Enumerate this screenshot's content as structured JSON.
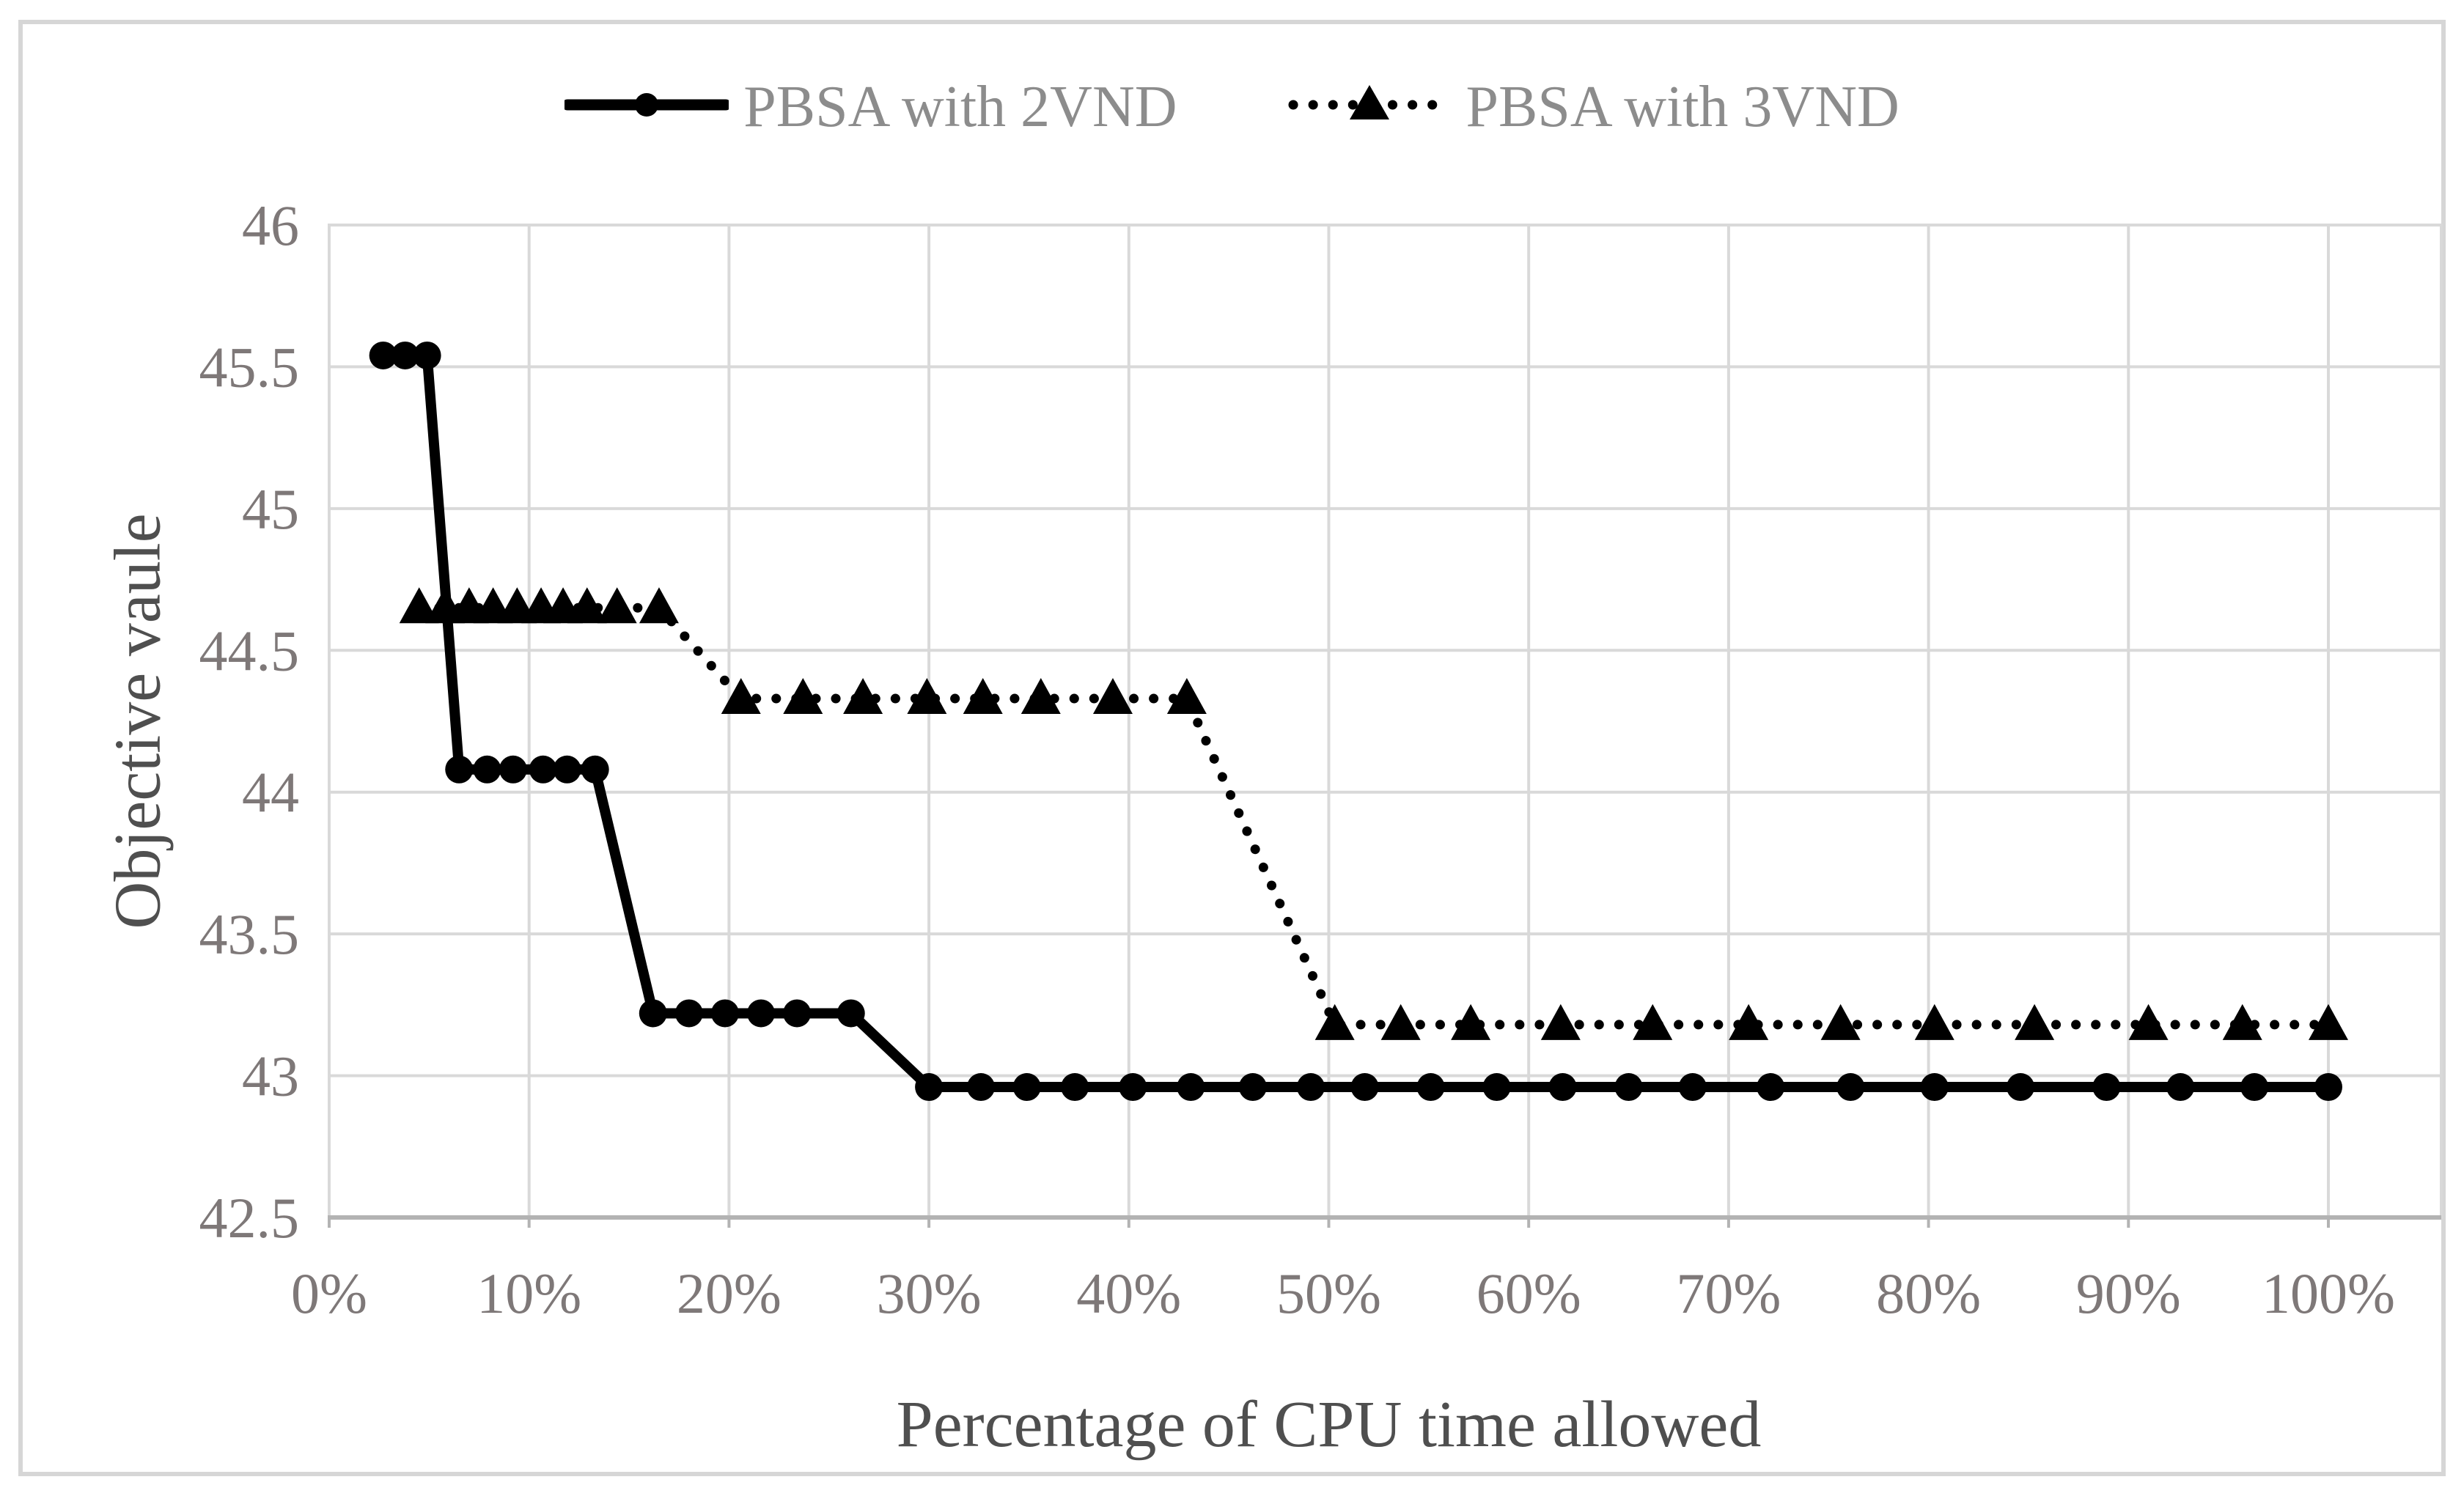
{
  "figure": {
    "background": "#ffffff",
    "border_color": "#d6d6d6"
  },
  "legend": {
    "position": "top-center",
    "text_color": "#8c8c8c",
    "items": [
      {
        "label": "PBSA with 2VND",
        "marker": "circle-icon",
        "line_style": "solid"
      },
      {
        "label": "PBSA with 3VND",
        "marker": "triangle-icon",
        "line_style": "dotted"
      }
    ]
  },
  "chart_data": {
    "type": "line",
    "title": "",
    "xlabel": "Percentage of CPU time allowed",
    "ylabel": "Objective vaule",
    "x_tick_labels": [
      "0%",
      "10%",
      "20%",
      "30%",
      "40%",
      "50%",
      "60%",
      "70%",
      "80%",
      "90%",
      "100%"
    ],
    "x_tick_values": [
      0,
      10,
      20,
      30,
      40,
      50,
      60,
      70,
      80,
      90,
      100
    ],
    "y_tick_labels": [
      "42.5",
      "43",
      "43.5",
      "44",
      "44.5",
      "45",
      "45.5",
      "46"
    ],
    "y_tick_values": [
      42.5,
      43,
      43.5,
      44,
      44.5,
      45,
      45.5,
      46
    ],
    "xlim": [
      0,
      105.6
    ],
    "ylim": [
      42.5,
      46
    ],
    "grid": true,
    "legend_position": "top",
    "colors": {
      "series": "#000000",
      "grid": "#d9d9d9",
      "axis_line": "#b3b3b3",
      "tick_text": "#7e7878",
      "title_text": "#4f4f4f"
    },
    "series": [
      {
        "name": "PBSA with 2VND",
        "line_style": "solid",
        "marker": "circle",
        "color": "#000000",
        "points": [
          [
            2.7,
            45.54
          ],
          [
            3.8,
            45.54
          ],
          [
            4.9,
            45.54
          ],
          [
            6.5,
            44.08
          ],
          [
            7.9,
            44.08
          ],
          [
            9.2,
            44.08
          ],
          [
            10.7,
            44.08
          ],
          [
            11.9,
            44.08
          ],
          [
            13.3,
            44.08
          ],
          [
            16.2,
            43.22
          ],
          [
            18.0,
            43.22
          ],
          [
            19.8,
            43.22
          ],
          [
            21.6,
            43.22
          ],
          [
            23.4,
            43.22
          ],
          [
            26.1,
            43.22
          ],
          [
            30.0,
            42.96
          ],
          [
            32.6,
            42.96
          ],
          [
            34.9,
            42.96
          ],
          [
            37.3,
            42.96
          ],
          [
            40.2,
            42.96
          ],
          [
            43.1,
            42.96
          ],
          [
            46.2,
            42.96
          ],
          [
            49.1,
            42.96
          ],
          [
            51.8,
            42.96
          ],
          [
            55.1,
            42.96
          ],
          [
            58.4,
            42.96
          ],
          [
            61.7,
            42.96
          ],
          [
            65.0,
            42.96
          ],
          [
            68.2,
            42.96
          ],
          [
            72.1,
            42.96
          ],
          [
            76.1,
            42.96
          ],
          [
            80.3,
            42.96
          ],
          [
            84.6,
            42.96
          ],
          [
            88.9,
            42.96
          ],
          [
            92.6,
            42.96
          ],
          [
            96.3,
            42.96
          ],
          [
            100,
            42.96
          ]
        ]
      },
      {
        "name": "PBSA with 3VND",
        "line_style": "dotted",
        "marker": "triangle",
        "color": "#000000",
        "points": [
          [
            4.5,
            44.65
          ],
          [
            5.8,
            44.65
          ],
          [
            7.0,
            44.65
          ],
          [
            8.2,
            44.65
          ],
          [
            9.4,
            44.65
          ],
          [
            10.6,
            44.65
          ],
          [
            11.7,
            44.65
          ],
          [
            12.9,
            44.65
          ],
          [
            14.4,
            44.65
          ],
          [
            16.5,
            44.65
          ],
          [
            20.6,
            44.33
          ],
          [
            23.7,
            44.33
          ],
          [
            26.7,
            44.33
          ],
          [
            29.9,
            44.33
          ],
          [
            32.7,
            44.33
          ],
          [
            35.6,
            44.33
          ],
          [
            39.2,
            44.33
          ],
          [
            42.9,
            44.33
          ],
          [
            50.3,
            43.18
          ],
          [
            53.6,
            43.18
          ],
          [
            57.1,
            43.18
          ],
          [
            61.6,
            43.18
          ],
          [
            66.2,
            43.18
          ],
          [
            71.0,
            43.18
          ],
          [
            75.6,
            43.18
          ],
          [
            80.3,
            43.18
          ],
          [
            85.3,
            43.18
          ],
          [
            91.0,
            43.18
          ],
          [
            95.7,
            43.18
          ],
          [
            100,
            43.18
          ]
        ]
      }
    ]
  }
}
